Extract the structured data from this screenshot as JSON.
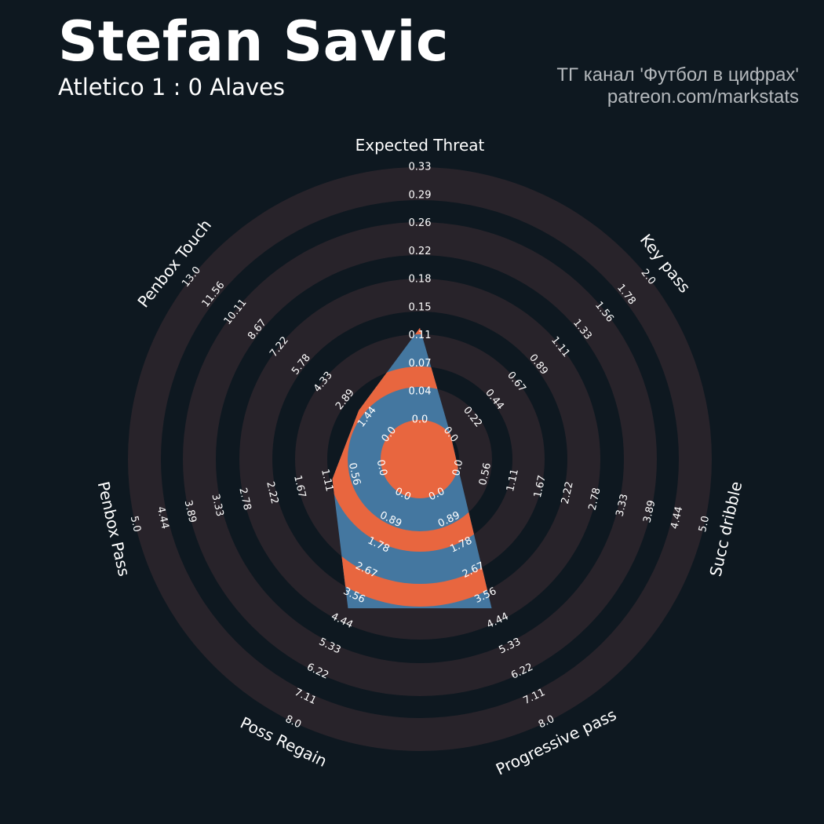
{
  "header": {
    "title": "Stefan Savic",
    "subtitle": "Atletico 1 : 0 Alaves",
    "credit_line1": "ТГ канал 'Футбол в цифрах'",
    "credit_line2": "patreon.com/markstats"
  },
  "colors": {
    "background": "#0e1820",
    "ring_band": "#28232a",
    "polygon_primary": "#4477a0",
    "polygon_alternate": "#e8663f",
    "text": "#ffffff",
    "credit_text": "#b4b8bc"
  },
  "chart_data": {
    "type": "radar",
    "params": [
      {
        "name": "Expected Threat",
        "value": 0.12,
        "range": [
          0,
          0.33
        ],
        "ticks": [
          "0.0",
          "0.04",
          "0.07",
          "0.11",
          "0.15",
          "0.18",
          "0.22",
          "0.26",
          "0.29",
          "0.33"
        ]
      },
      {
        "name": "Key pass",
        "value": 0.0,
        "range": [
          0,
          2.0
        ],
        "ticks": [
          "0.0",
          "0.22",
          "0.44",
          "0.67",
          "0.89",
          "1.11",
          "1.33",
          "1.56",
          "1.78",
          "2.0"
        ]
      },
      {
        "name": "Succ dribble",
        "value": 0.0,
        "range": [
          0,
          5.0
        ],
        "ticks": [
          "0.0",
          "0.56",
          "1.11",
          "1.67",
          "2.22",
          "2.78",
          "3.33",
          "3.89",
          "4.44",
          "5.0"
        ]
      },
      {
        "name": "Progressive pass",
        "value": 4.0,
        "range": [
          0,
          8.0
        ],
        "ticks": [
          "0.0",
          "0.89",
          "1.78",
          "2.67",
          "3.56",
          "4.44",
          "5.33",
          "6.22",
          "7.11",
          "8.0"
        ]
      },
      {
        "name": "Poss Regain",
        "value": 4.0,
        "range": [
          0,
          8.0
        ],
        "ticks": [
          "0.0",
          "0.89",
          "1.78",
          "2.67",
          "3.56",
          "4.44",
          "5.33",
          "6.22",
          "7.11",
          "8.0"
        ]
      },
      {
        "name": "Penbox Pass",
        "value": 1.0,
        "range": [
          0,
          5.0
        ],
        "ticks": [
          "0.0",
          "0.56",
          "1.11",
          "1.67",
          "2.22",
          "2.78",
          "3.33",
          "3.89",
          "4.44",
          "5.0"
        ]
      },
      {
        "name": "Penbox Touch",
        "value": 2.0,
        "range": [
          0,
          13.0
        ],
        "ticks": [
          "0.0",
          "1.44",
          "2.89",
          "4.33",
          "5.78",
          "7.22",
          "8.67",
          "10.11",
          "11.56",
          "13.0"
        ]
      }
    ],
    "first_param_direction": "top",
    "order": "clockwise",
    "grid": "alternating concentric rings"
  }
}
